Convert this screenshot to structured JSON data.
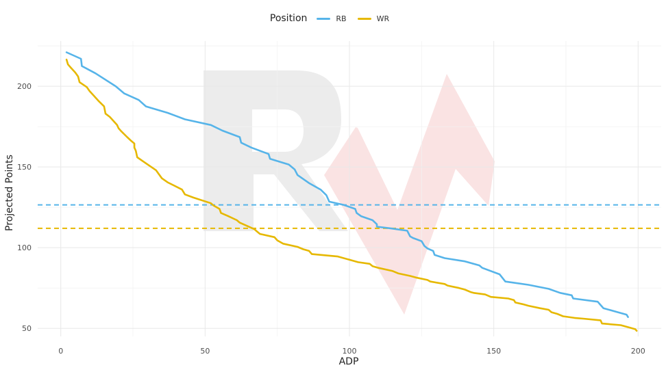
{
  "chart_data": {
    "type": "line",
    "xlabel": "ADP",
    "ylabel": "Projected Points",
    "xlim": [
      -8,
      208
    ],
    "ylim": [
      45,
      228
    ],
    "x_ticks": [
      0,
      50,
      100,
      150,
      200
    ],
    "y_ticks": [
      50,
      100,
      150,
      200
    ],
    "grid": true,
    "legend": {
      "title": "Position",
      "position": "top"
    },
    "series": [
      {
        "name": "RB",
        "color": "#56B4E9",
        "hline": 126.5,
        "points": [
          [
            2,
            221
          ],
          [
            7,
            217
          ],
          [
            7.3,
            212.5
          ],
          [
            12,
            208
          ],
          [
            19,
            200
          ],
          [
            22,
            195.5
          ],
          [
            27,
            191.5
          ],
          [
            29.5,
            187.5
          ],
          [
            37,
            183.5
          ],
          [
            43,
            179.5
          ],
          [
            52,
            176
          ],
          [
            56,
            172.5
          ],
          [
            62,
            168.5
          ],
          [
            62.5,
            165
          ],
          [
            66,
            162
          ],
          [
            72,
            158
          ],
          [
            72.5,
            155
          ],
          [
            79,
            151.5
          ],
          [
            81,
            148.5
          ],
          [
            82,
            145
          ],
          [
            86,
            140
          ],
          [
            90,
            136
          ],
          [
            92,
            132.5
          ],
          [
            93,
            128.5
          ],
          [
            98,
            126.5
          ],
          [
            102,
            124
          ],
          [
            102.5,
            121.5
          ],
          [
            104,
            119.5
          ],
          [
            108,
            117
          ],
          [
            109.5,
            114.5
          ],
          [
            109.5,
            113
          ],
          [
            114,
            112
          ],
          [
            120,
            110.5
          ],
          [
            121,
            107
          ],
          [
            122,
            106
          ],
          [
            125,
            104
          ],
          [
            126,
            101
          ],
          [
            127,
            99.5
          ],
          [
            129,
            98
          ],
          [
            129.5,
            95.5
          ],
          [
            133,
            93.5
          ],
          [
            140,
            91.5
          ],
          [
            145,
            89
          ],
          [
            146,
            87.5
          ],
          [
            152,
            83.5
          ],
          [
            154,
            79
          ],
          [
            162,
            77
          ],
          [
            169,
            74.5
          ],
          [
            173,
            72
          ],
          [
            177,
            70.5
          ],
          [
            177.5,
            68.5
          ],
          [
            186,
            66.5
          ],
          [
            187,
            64.5
          ],
          [
            188,
            62.5
          ],
          [
            193,
            60
          ],
          [
            196,
            58.5
          ],
          [
            196.5,
            57
          ]
        ]
      },
      {
        "name": "WR",
        "color": "#E6B800",
        "hline": 112,
        "points": [
          [
            2,
            216.5
          ],
          [
            2.5,
            213.5
          ],
          [
            3.5,
            211.5
          ],
          [
            5,
            208.5
          ],
          [
            6,
            206
          ],
          [
            6.5,
            202.5
          ],
          [
            9,
            199.5
          ],
          [
            10,
            197
          ],
          [
            11.5,
            194
          ],
          [
            13,
            191
          ],
          [
            15,
            187.5
          ],
          [
            15.5,
            183
          ],
          [
            17,
            181
          ],
          [
            18.5,
            178
          ],
          [
            19.5,
            176
          ],
          [
            20,
            174
          ],
          [
            21,
            172
          ],
          [
            23,
            168.5
          ],
          [
            24.5,
            166
          ],
          [
            25.5,
            164.5
          ],
          [
            25.5,
            162
          ],
          [
            26,
            160
          ],
          [
            26.5,
            156
          ],
          [
            28.5,
            153.5
          ],
          [
            33,
            148
          ],
          [
            34,
            145.5
          ],
          [
            35,
            143
          ],
          [
            37,
            140.5
          ],
          [
            42,
            136
          ],
          [
            43,
            133
          ],
          [
            46,
            131
          ],
          [
            52,
            127.5
          ],
          [
            53,
            126
          ],
          [
            55,
            124
          ],
          [
            55.5,
            121.5
          ],
          [
            58,
            119.5
          ],
          [
            61,
            117
          ],
          [
            62,
            115.5
          ],
          [
            67,
            111.5
          ],
          [
            68,
            110
          ],
          [
            69,
            108.5
          ],
          [
            74,
            106.5
          ],
          [
            75,
            104.5
          ],
          [
            77,
            102.5
          ],
          [
            82,
            100.5
          ],
          [
            84,
            99
          ],
          [
            86,
            98
          ],
          [
            87,
            96
          ],
          [
            96,
            94.5
          ],
          [
            101,
            92
          ],
          [
            103,
            91
          ],
          [
            107,
            90
          ],
          [
            108,
            88.5
          ],
          [
            110,
            87.5
          ],
          [
            115,
            85.5
          ],
          [
            117,
            84
          ],
          [
            121,
            82.5
          ],
          [
            123,
            81.5
          ],
          [
            127,
            80
          ],
          [
            128,
            79
          ],
          [
            133,
            77.5
          ],
          [
            134,
            76.5
          ],
          [
            138,
            75
          ],
          [
            140,
            74
          ],
          [
            142,
            72.5
          ],
          [
            143,
            72
          ],
          [
            147,
            71
          ],
          [
            149,
            69.5
          ],
          [
            155,
            68.5
          ],
          [
            157,
            67.5
          ],
          [
            157.5,
            66
          ],
          [
            160,
            65
          ],
          [
            162,
            64
          ],
          [
            166,
            62.5
          ],
          [
            169,
            61.5
          ],
          [
            170,
            60
          ],
          [
            172,
            59
          ],
          [
            174,
            57.5
          ],
          [
            178,
            56.5
          ],
          [
            181,
            56
          ],
          [
            187,
            55
          ],
          [
            187.5,
            53
          ],
          [
            194,
            52
          ],
          [
            197,
            50.5
          ],
          [
            199,
            49.5
          ],
          [
            199.5,
            48.5
          ]
        ]
      }
    ]
  }
}
